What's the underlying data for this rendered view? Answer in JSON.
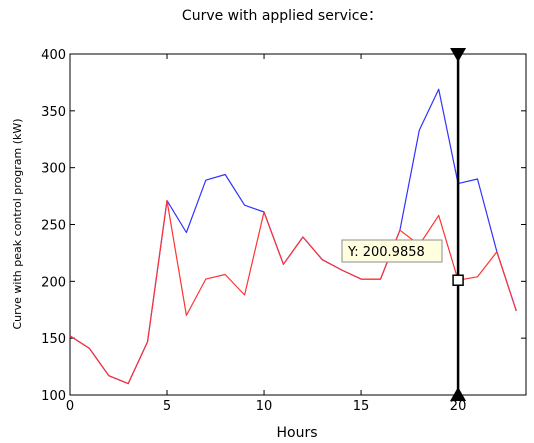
{
  "chart_data": {
    "type": "line",
    "title": "Curve with applied service：",
    "xlabel": "Hours",
    "ylabel": "Curve with peak control program (kW)",
    "xlim": [
      0,
      23.5
    ],
    "ylim": [
      100,
      400
    ],
    "xticks": [
      0,
      5,
      10,
      15,
      20
    ],
    "yticks": [
      100,
      150,
      200,
      250,
      300,
      350,
      400
    ],
    "grid": false,
    "series": [
      {
        "color": "#3333ff",
        "x": [
          0,
          1,
          2,
          3,
          4,
          5,
          6,
          7,
          8,
          9,
          10,
          11,
          12,
          13,
          14,
          15,
          16,
          17,
          18,
          19,
          20,
          21,
          22,
          23
        ],
        "values": [
          152,
          141,
          117,
          110,
          147,
          271,
          243,
          289,
          294,
          267,
          261,
          215,
          239,
          219,
          210,
          202,
          202,
          245,
          333,
          369,
          286,
          290,
          226,
          174
        ]
      },
      {
        "color": "#ff3333",
        "x": [
          0,
          1,
          2,
          3,
          4,
          5,
          6,
          7,
          8,
          9,
          10,
          11,
          12,
          13,
          14,
          15,
          16,
          17,
          18,
          19,
          20,
          21,
          22,
          23
        ],
        "values": [
          152,
          141,
          117,
          110,
          147,
          271,
          170,
          202,
          206,
          188,
          261,
          215,
          239,
          219,
          210,
          202,
          202,
          245,
          232,
          258,
          201,
          204,
          226,
          174
        ]
      }
    ],
    "cursor": {
      "x": 20,
      "y": 200.9858,
      "label": "Y: 200.9858"
    }
  }
}
